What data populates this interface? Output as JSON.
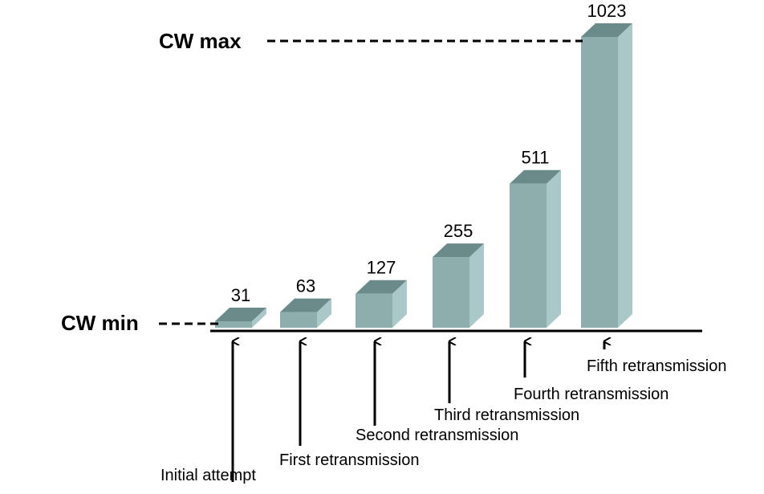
{
  "chart_data": {
    "type": "bar",
    "categories": [
      "Initial attempt",
      "First retransmission",
      "Second retransmission",
      "Third retransmission",
      "Fourth retransmission",
      "Fifth retransmission"
    ],
    "values": [
      31,
      63,
      127,
      255,
      511,
      1023
    ],
    "data_labels": [
      "31",
      "63",
      "127",
      "255",
      "511",
      "1023"
    ],
    "reference_lines": [
      {
        "label": "CW min",
        "value": 31
      },
      {
        "label": "CW max",
        "value": 1023
      }
    ],
    "bar_style": "3d",
    "grid": false,
    "legend": "none"
  },
  "colors": {
    "bar_front": "#8eaeae",
    "bar_top": "#6b8a8a",
    "bar_side": "#aac8c8",
    "axis": "#000000",
    "text": "#000000"
  }
}
